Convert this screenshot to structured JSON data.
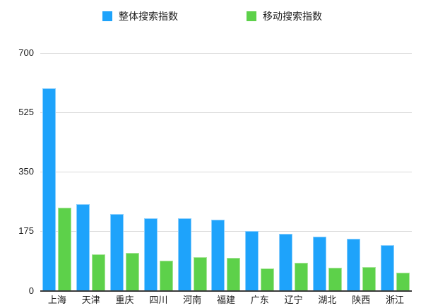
{
  "chart_data": {
    "type": "bar",
    "title": "",
    "xlabel": "",
    "ylabel": "",
    "grid": true,
    "legend_position": "top",
    "ylim": [
      0,
      700
    ],
    "yticks": [
      0,
      175,
      350,
      525,
      700
    ],
    "categories": [
      "上海",
      "天津",
      "重庆",
      "四川",
      "河南",
      "福建",
      "广东",
      "辽宁",
      "湖北",
      "陕西",
      "浙江"
    ],
    "series": [
      {
        "name": "整体搜索指数",
        "color": "#1EA3FB",
        "border_color": "#8BCFFD",
        "values": [
          595,
          255,
          225,
          212,
          212,
          208,
          175,
          168,
          158,
          153,
          133
        ]
      },
      {
        "name": "移动搜索指数",
        "color": "#5DD14A",
        "border_color": "#A9E59A",
        "values": [
          245,
          108,
          111,
          88,
          98,
          97,
          66,
          82,
          68,
          70,
          53
        ]
      }
    ]
  },
  "colors": {
    "gridline": "#D9D9D9",
    "axis_line": "#3A3A3A",
    "text": "#1A1A1A",
    "background": "#FFFFFF"
  }
}
